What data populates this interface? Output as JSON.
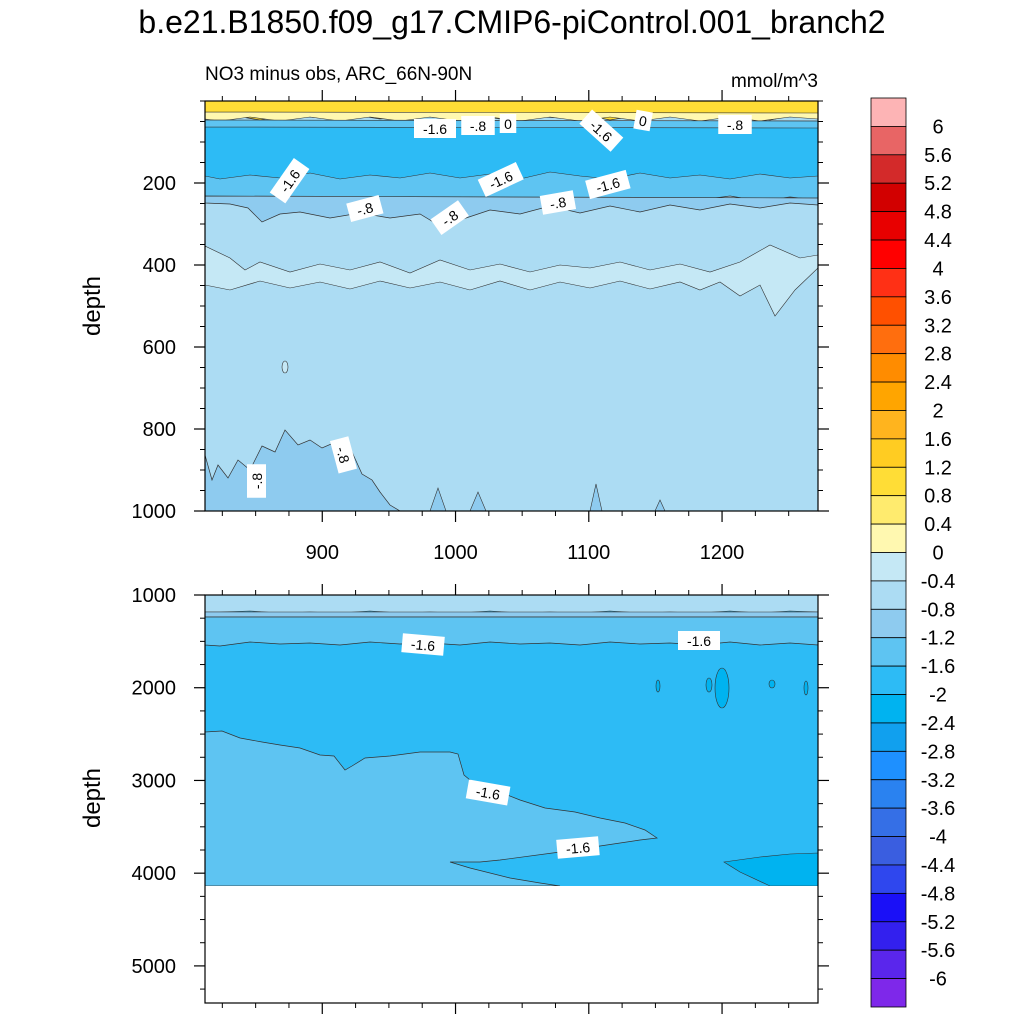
{
  "title": "b.e21.B1850.f09_g17.CMIP6-piControl.001_branch2",
  "chart_data": {
    "type": "contour",
    "left_label": "NO3 minus obs, ARC_66N-90N",
    "units_label": "mmol/m^3",
    "x_ticks": [
      "900",
      "1000",
      "1100",
      "1200"
    ],
    "x_tick_values": [
      900,
      1000,
      1100,
      1200
    ],
    "xlim": [
      812,
      1272
    ],
    "panels": [
      {
        "name": "upper",
        "ylabel": "depth",
        "ylim": [
          1000,
          0
        ],
        "y_ticks": [
          "200",
          "400",
          "600",
          "800",
          "1000"
        ],
        "y_tick_values": [
          200,
          400,
          600,
          800,
          1000
        ],
        "contour_labels": [
          "-1.6",
          "-.8",
          "0",
          "-1.6",
          "0",
          "-.8",
          "-1.6",
          "-1.6",
          "-1.6",
          "-.8",
          "-.8",
          "-.8",
          "-.8",
          "-.8"
        ]
      },
      {
        "name": "lower",
        "ylabel": "depth",
        "ylim": [
          5400,
          1000
        ],
        "y_ticks": [
          "1000",
          "2000",
          "3000",
          "4000",
          "5000"
        ],
        "y_tick_values": [
          1000,
          2000,
          3000,
          4000,
          5000
        ],
        "contour_labels": [
          "-1.6",
          "-1.6",
          "-1.6",
          "-1.6"
        ]
      }
    ],
    "colorbar": {
      "levels": [
        "6",
        "5.6",
        "5.2",
        "4.8",
        "4.4",
        "4",
        "3.6",
        "3.2",
        "2.8",
        "2.4",
        "2",
        "1.6",
        "1.2",
        "0.8",
        "0.4",
        "0",
        "-0.4",
        "-0.8",
        "-1.2",
        "-1.6",
        "-2",
        "-2.4",
        "-2.8",
        "-3.2",
        "-3.6",
        "-4",
        "-4.4",
        "-4.8",
        "-5.2",
        "-5.6",
        "-6"
      ],
      "colors": [
        "#FDB4B5",
        "#E86565",
        "#D32A2A",
        "#D20000",
        "#E80000",
        "#FF0000",
        "#FF3015",
        "#FF5000",
        "#FF6E0E",
        "#FF8C00",
        "#FFA500",
        "#FFB41E",
        "#FFCC22",
        "#FFDD36",
        "#FFEB6E",
        "#FFF8B0",
        "#C5E8F5",
        "#ACDCF3",
        "#8ECBEF",
        "#5EC4F2",
        "#2DBBF5",
        "#00B3F0",
        "#11A0EE",
        "#1E90FF",
        "#2A82F0",
        "#356FE6",
        "#3A5EE0",
        "#2F47EE",
        "#1A10F7",
        "#3320EE",
        "#5A26EC",
        "#7E28EA"
      ]
    },
    "fill_colors": {
      "positive_band": "#FFDD36",
      "band_0_-0.4": "#C5E8F5",
      "band_-0.4_-0.8": "#ACDCF3",
      "band_-0.8_-1.2": "#8ECBEF",
      "band_-1.2_-1.6": "#5EC4F2",
      "band_-1.6_-2": "#2DBBF5",
      "band_-2_-2.4": "#00B3F0"
    }
  }
}
